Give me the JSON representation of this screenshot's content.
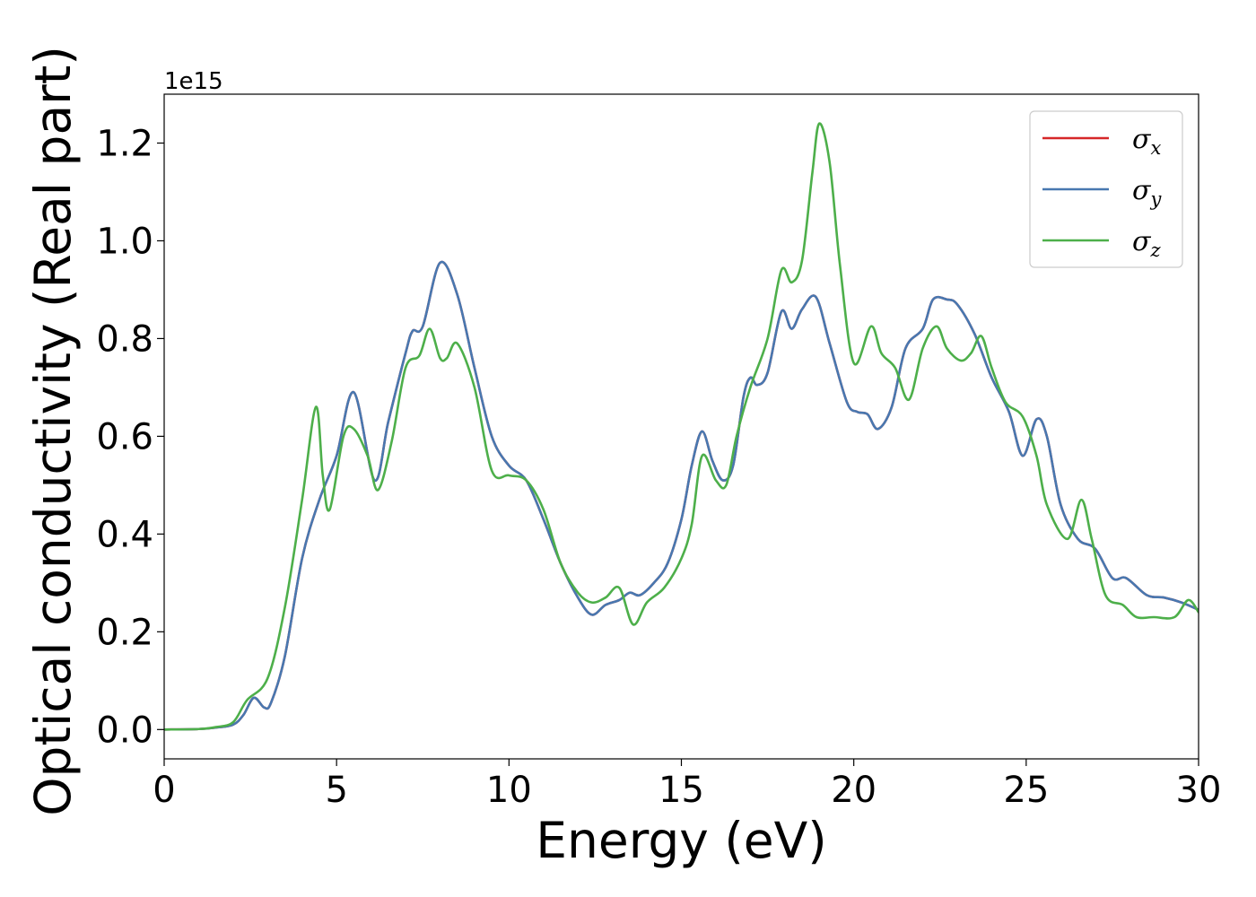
{
  "chart_data": {
    "type": "line",
    "xlabel": "Energy (eV)",
    "ylabel": "Optical conductivity (Real part)",
    "y_offset_text": "1e15",
    "xlim": [
      0,
      30
    ],
    "ylim": [
      -0.06,
      1.3
    ],
    "x_ticks": [
      0,
      5,
      10,
      15,
      20,
      25,
      30
    ],
    "y_ticks": [
      0.0,
      0.2,
      0.4,
      0.6,
      0.8,
      1.0,
      1.2
    ],
    "x_tick_labels": [
      "0",
      "5",
      "10",
      "15",
      "20",
      "25",
      "30"
    ],
    "y_tick_labels": [
      "0.0",
      "0.2",
      "0.4",
      "0.6",
      "0.8",
      "1.0",
      "1.2"
    ],
    "grid": false,
    "legend_position": "top-right",
    "series": [
      {
        "name": "σx",
        "base": "σ",
        "sub": "x",
        "color": "#d62728",
        "x": [
          0,
          1,
          1.5,
          2,
          2.3,
          2.6,
          2.9,
          3.1,
          3.5,
          4,
          4.5,
          5,
          5.5,
          6.1,
          6.5,
          7,
          7.2,
          7.5,
          8,
          8.5,
          9,
          9.5,
          10,
          10.5,
          11,
          11.5,
          12,
          12.4,
          12.8,
          13.2,
          13.5,
          13.8,
          14.2,
          14.6,
          15,
          15.3,
          15.6,
          15.9,
          16.2,
          16.5,
          16.8,
          17,
          17.2,
          17.5,
          17.9,
          18.2,
          18.5,
          18.9,
          19.3,
          19.8,
          20.1,
          20.4,
          20.7,
          21.1,
          21.5,
          22,
          22.3,
          22.7,
          23,
          23.5,
          24,
          24.5,
          24.9,
          25.3,
          25.6,
          26,
          26.5,
          27,
          27.5,
          27.9,
          28.5,
          29,
          29.5,
          30
        ],
        "y": [
          0,
          0.001,
          0.004,
          0.01,
          0.03,
          0.065,
          0.045,
          0.055,
          0.15,
          0.35,
          0.47,
          0.56,
          0.69,
          0.51,
          0.63,
          0.77,
          0.815,
          0.825,
          0.955,
          0.89,
          0.74,
          0.6,
          0.54,
          0.51,
          0.43,
          0.34,
          0.27,
          0.235,
          0.255,
          0.265,
          0.28,
          0.275,
          0.3,
          0.34,
          0.43,
          0.54,
          0.61,
          0.55,
          0.51,
          0.54,
          0.68,
          0.72,
          0.705,
          0.73,
          0.855,
          0.82,
          0.86,
          0.885,
          0.79,
          0.67,
          0.65,
          0.645,
          0.615,
          0.66,
          0.78,
          0.82,
          0.88,
          0.88,
          0.87,
          0.81,
          0.72,
          0.65,
          0.56,
          0.635,
          0.6,
          0.46,
          0.39,
          0.37,
          0.31,
          0.31,
          0.275,
          0.27,
          0.26,
          0.245
        ]
      },
      {
        "name": "σy",
        "base": "σ",
        "sub": "y",
        "color": "#4878b0",
        "x": [
          0,
          1,
          1.5,
          2,
          2.3,
          2.6,
          2.9,
          3.1,
          3.5,
          4,
          4.5,
          5,
          5.5,
          6.1,
          6.5,
          7,
          7.2,
          7.5,
          8,
          8.5,
          9,
          9.5,
          10,
          10.5,
          11,
          11.5,
          12,
          12.4,
          12.8,
          13.2,
          13.5,
          13.8,
          14.2,
          14.6,
          15,
          15.3,
          15.6,
          15.9,
          16.2,
          16.5,
          16.8,
          17,
          17.2,
          17.5,
          17.9,
          18.2,
          18.5,
          18.9,
          19.3,
          19.8,
          20.1,
          20.4,
          20.7,
          21.1,
          21.5,
          22,
          22.3,
          22.7,
          23,
          23.5,
          24,
          24.5,
          24.9,
          25.3,
          25.6,
          26,
          26.5,
          27,
          27.5,
          27.9,
          28.5,
          29,
          29.5,
          30
        ],
        "y": [
          0,
          0.001,
          0.004,
          0.01,
          0.03,
          0.065,
          0.045,
          0.055,
          0.15,
          0.35,
          0.47,
          0.56,
          0.69,
          0.51,
          0.63,
          0.77,
          0.815,
          0.825,
          0.955,
          0.89,
          0.74,
          0.6,
          0.54,
          0.51,
          0.43,
          0.34,
          0.27,
          0.235,
          0.255,
          0.265,
          0.28,
          0.275,
          0.3,
          0.34,
          0.43,
          0.54,
          0.61,
          0.55,
          0.51,
          0.54,
          0.68,
          0.72,
          0.705,
          0.73,
          0.855,
          0.82,
          0.86,
          0.885,
          0.79,
          0.67,
          0.65,
          0.645,
          0.615,
          0.66,
          0.78,
          0.82,
          0.88,
          0.88,
          0.87,
          0.81,
          0.72,
          0.65,
          0.56,
          0.635,
          0.6,
          0.46,
          0.39,
          0.37,
          0.31,
          0.31,
          0.275,
          0.27,
          0.26,
          0.245
        ]
      },
      {
        "name": "σz",
        "base": "σ",
        "sub": "z",
        "color": "#4daf4a",
        "x": [
          0,
          1,
          1.5,
          2,
          2.4,
          3,
          3.5,
          4,
          4.4,
          4.6,
          4.8,
          5.2,
          5.5,
          5.9,
          6.2,
          6.6,
          7,
          7.4,
          7.7,
          8,
          8.2,
          8.5,
          9,
          9.5,
          10,
          10.5,
          11,
          11.5,
          12,
          12.4,
          12.8,
          13.2,
          13.6,
          14,
          14.5,
          15,
          15.3,
          15.6,
          16,
          16.3,
          16.6,
          17,
          17.5,
          17.9,
          18.2,
          18.5,
          18.8,
          19,
          19.3,
          19.6,
          20,
          20.5,
          20.8,
          21.2,
          21.6,
          22,
          22.4,
          22.7,
          23.1,
          23.4,
          23.7,
          24,
          24.4,
          24.9,
          25.3,
          25.6,
          26.2,
          26.6,
          26.9,
          27.3,
          27.8,
          28.2,
          28.7,
          29.3,
          29.7,
          30
        ],
        "y": [
          0,
          0.001,
          0.005,
          0.015,
          0.06,
          0.105,
          0.25,
          0.47,
          0.66,
          0.52,
          0.45,
          0.6,
          0.615,
          0.56,
          0.49,
          0.59,
          0.74,
          0.765,
          0.82,
          0.76,
          0.76,
          0.79,
          0.7,
          0.53,
          0.52,
          0.51,
          0.45,
          0.34,
          0.28,
          0.26,
          0.27,
          0.29,
          0.215,
          0.26,
          0.29,
          0.35,
          0.42,
          0.56,
          0.51,
          0.5,
          0.6,
          0.7,
          0.8,
          0.94,
          0.915,
          0.96,
          1.14,
          1.24,
          1.16,
          0.95,
          0.75,
          0.825,
          0.77,
          0.74,
          0.675,
          0.78,
          0.825,
          0.78,
          0.755,
          0.77,
          0.805,
          0.74,
          0.67,
          0.64,
          0.56,
          0.46,
          0.39,
          0.47,
          0.39,
          0.275,
          0.255,
          0.23,
          0.23,
          0.23,
          0.265,
          0.24
        ]
      }
    ]
  }
}
